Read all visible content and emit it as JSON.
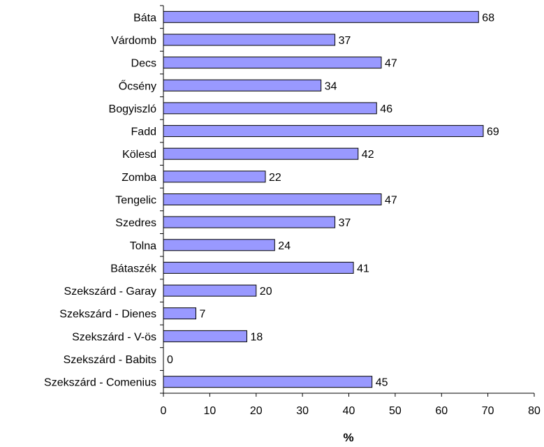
{
  "chart_data": {
    "type": "bar",
    "orientation": "horizontal",
    "categories": [
      "Báta",
      "Várdomb",
      "Decs",
      "Őcsény",
      "Bogyiszló",
      "Fadd",
      "Kölesd",
      "Zomba",
      "Tengelic",
      "Szedres",
      "Tolna",
      "Bátaszék",
      "Szekszárd - Garay",
      "Szekszárd - Dienes",
      "Szekszárd - V-ös",
      "Szekszárd - Babits",
      "Szekszárd - Comenius"
    ],
    "values": [
      68,
      37,
      47,
      34,
      46,
      69,
      42,
      22,
      47,
      37,
      24,
      41,
      20,
      7,
      18,
      0,
      45
    ],
    "value_labels": [
      "68",
      "37",
      "47",
      "34",
      "46",
      "69",
      "42",
      "22",
      "47",
      "37",
      "24",
      "41",
      "20",
      "7",
      "18",
      "0",
      "45"
    ],
    "title": "",
    "xlabel": "%",
    "ylabel": "",
    "xlim": [
      0,
      80
    ],
    "xticks": [
      "0",
      "10",
      "20",
      "30",
      "40",
      "50",
      "60",
      "70",
      "80"
    ],
    "grid": false,
    "legend": "none",
    "colors": {
      "bar_fill": "#9999ff",
      "bar_stroke": "#000000",
      "axis": "#000000"
    }
  }
}
